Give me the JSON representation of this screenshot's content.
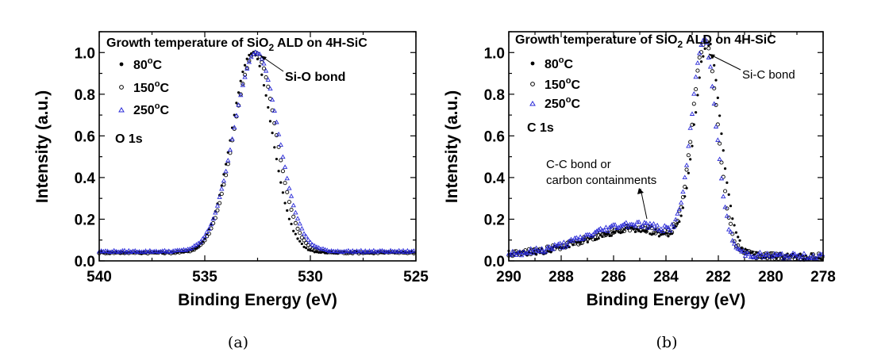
{
  "chart_data": [
    {
      "type": "scatter",
      "panel_label": "(a)",
      "title": "Growth temperature of SiO2 ALD on 4H-SiC",
      "title_parts": {
        "pre": "Growth temperature of SiO",
        "sub": "2",
        "post": " ALD on 4H-SiC"
      },
      "xlabel": "Binding Energy (eV)",
      "ylabel": "Intensity (a.u.)",
      "xlim": [
        540,
        525
      ],
      "ylim": [
        0,
        1.1
      ],
      "xticks": [
        540,
        535,
        530,
        525
      ],
      "yticks": [
        0.0,
        0.2,
        0.4,
        0.6,
        0.8,
        1.0
      ],
      "ytick_labels": [
        "0.0",
        "0.2",
        "0.4",
        "0.6",
        "0.8",
        "1.0"
      ],
      "region_label": "O 1s",
      "peak_annotation": "Si-O bond",
      "peak_annotation_at": [
        532.6,
        1.0
      ],
      "series": [
        {
          "name": "80°C",
          "name_parts": {
            "num": "80",
            "sup": "o",
            "unit": "C"
          },
          "marker": "filled-circle",
          "color": "#000000",
          "center": 532.75,
          "sigma": 0.98,
          "peak": 1.0,
          "base": 0.04
        },
        {
          "name": "150°C",
          "name_parts": {
            "num": "150",
            "sup": "o",
            "unit": "C"
          },
          "marker": "open-circle",
          "color": "#000000",
          "center": 532.6,
          "sigma": 1.02,
          "peak": 1.0,
          "base": 0.04
        },
        {
          "name": "250°C",
          "name_parts": {
            "num": "250",
            "sup": "o",
            "unit": "C"
          },
          "marker": "open-triangle",
          "color": "#2a2ad8",
          "center": 532.55,
          "sigma": 1.08,
          "peak": 1.0,
          "base": 0.045
        }
      ]
    },
    {
      "type": "scatter",
      "panel_label": "(b)",
      "title": "Growth temperature of SiO2 ALD on 4H-SiC",
      "title_parts": {
        "pre": "Growth temperature of SiO",
        "sub": "2",
        "post": " ALD on 4H-SiC"
      },
      "xlabel": "Binding Energy (eV)",
      "ylabel": "Intensity (a.u.)",
      "xlim": [
        290,
        278
      ],
      "ylim": [
        0,
        1.1
      ],
      "xticks": [
        290,
        288,
        286,
        284,
        282,
        280,
        278
      ],
      "yticks": [
        0.0,
        0.2,
        0.4,
        0.6,
        0.8,
        1.0
      ],
      "ytick_labels": [
        "0.0",
        "0.2",
        "0.4",
        "0.6",
        "0.8",
        "1.0"
      ],
      "region_label": "C 1s",
      "peak_annotation": "Si-C bond",
      "peak_annotation_at": [
        282.4,
        0.99
      ],
      "side_annotation": [
        "C-C bond or",
        "carbon containments"
      ],
      "side_annotation_at": [
        284.9,
        0.17
      ],
      "series": [
        {
          "name": "80°C",
          "name_parts": {
            "num": "80",
            "sup": "o",
            "unit": "C"
          },
          "marker": "filled-circle",
          "color": "#000000",
          "center": 282.4,
          "sigma": 0.5,
          "peak": 0.99,
          "shoulder": 0.12
        },
        {
          "name": "150°C",
          "name_parts": {
            "num": "150",
            "sup": "o",
            "unit": "C"
          },
          "marker": "open-circle",
          "color": "#000000",
          "center": 282.5,
          "sigma": 0.48,
          "peak": 0.99,
          "shoulder": 0.13
        },
        {
          "name": "250°C",
          "name_parts": {
            "num": "250",
            "sup": "o",
            "unit": "C"
          },
          "marker": "open-triangle",
          "color": "#2a2ad8",
          "center": 282.55,
          "sigma": 0.46,
          "peak": 0.99,
          "shoulder": 0.15
        }
      ]
    }
  ]
}
